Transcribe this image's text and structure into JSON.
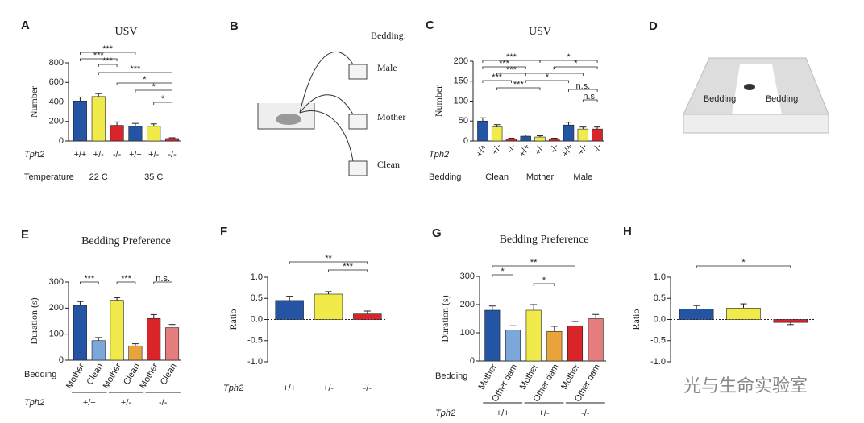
{
  "chart_data": [
    {
      "type": "bar",
      "panel": "A",
      "title": "USV",
      "ylabel": "Number",
      "ylim": [
        0,
        800
      ],
      "yticks": [
        0,
        200,
        400,
        600,
        800
      ],
      "categories": [
        "+/+",
        "+/-",
        "-/-",
        "+/+",
        "+/-",
        "-/-"
      ],
      "colors": [
        "#2455a4",
        "#f0ea4a",
        "#d9252a",
        "#2455a4",
        "#f0ea4a",
        "#d9252a"
      ],
      "values": [
        410,
        455,
        160,
        150,
        150,
        25
      ],
      "errors": [
        40,
        30,
        35,
        30,
        25,
        8
      ],
      "row_labels": [
        "Tph2",
        "Temperature"
      ],
      "groups": [
        "22 C",
        "35 C"
      ],
      "annotations": [
        "***",
        "***",
        "***",
        "***",
        "*",
        "*",
        "*"
      ]
    },
    {
      "type": "bar",
      "panel": "C",
      "title": "USV",
      "ylabel": "Number",
      "ylim": [
        0,
        200
      ],
      "yticks": [
        0,
        50,
        100,
        150,
        200
      ],
      "categories": [
        "+/+",
        "+/-",
        "-/-",
        "+/+",
        "+/-",
        "-/-",
        "+/+",
        "+/-",
        "-/-"
      ],
      "colors": [
        "#2455a4",
        "#f0ea4a",
        "#d9252a",
        "#2455a4",
        "#f0ea4a",
        "#d9252a",
        "#2455a4",
        "#f0ea4a",
        "#d9252a"
      ],
      "values": [
        50,
        35,
        5,
        12,
        10,
        5,
        40,
        30,
        30
      ],
      "errors": [
        8,
        6,
        2,
        3,
        3,
        2,
        7,
        5,
        5
      ],
      "row_labels": [
        "Tph2",
        "Bedding"
      ],
      "groups": [
        "Clean",
        "Mother",
        "Male"
      ],
      "annotations": [
        "***",
        "***",
        "***",
        "***",
        "***",
        "*",
        "*",
        "*",
        "*",
        "n.s.",
        "n.s."
      ]
    },
    {
      "type": "bar",
      "panel": "E",
      "title": "Bedding Preference",
      "ylabel": "Duration (s)",
      "ylim": [
        0,
        300
      ],
      "yticks": [
        0,
        100,
        200,
        300
      ],
      "categories": [
        "Mother",
        "Clean",
        "Mother",
        "Clean",
        "Mother",
        "Clean"
      ],
      "colors": [
        "#2455a4",
        "#7ba7d9",
        "#f0ea4a",
        "#e8a33a",
        "#d9252a",
        "#e57c7e"
      ],
      "values": [
        210,
        75,
        230,
        55,
        160,
        125
      ],
      "errors": [
        15,
        12,
        10,
        8,
        15,
        12
      ],
      "row_labels": [
        "Bedding",
        "Tph2"
      ],
      "groups": [
        "+/+",
        "+/-",
        "-/-"
      ],
      "annotations": [
        "***",
        "***",
        "n.s."
      ]
    },
    {
      "type": "bar",
      "panel": "F",
      "ylabel": "Ratio",
      "ylim": [
        -1,
        1
      ],
      "yticks": [
        {
          "value": -1,
          "label": "-1.0"
        },
        {
          "value": -0.5,
          "label": "-0.5"
        },
        {
          "value": 0,
          "label": "0.0"
        },
        {
          "value": 0.5,
          "label": "0.5"
        },
        {
          "value": 1,
          "label": "1.0"
        }
      ],
      "categories": [
        "+/+",
        "+/-",
        "-/-"
      ],
      "colors": [
        "#2455a4",
        "#f0ea4a",
        "#d9252a"
      ],
      "values": [
        0.45,
        0.6,
        0.13
      ],
      "errors": [
        0.1,
        0.06,
        0.07
      ],
      "row_labels": [
        "Tph2"
      ],
      "annotations": [
        "**",
        "***"
      ]
    },
    {
      "type": "bar",
      "panel": "G",
      "title": "Bedding Preference",
      "ylabel": "Duration (s)",
      "ylim": [
        0,
        300
      ],
      "yticks": [
        0,
        100,
        200,
        300
      ],
      "categories": [
        "Mother",
        "Other dam",
        "Mother",
        "Other dam",
        "Mother",
        "Other dam"
      ],
      "colors": [
        "#2455a4",
        "#7ba7d9",
        "#f0ea4a",
        "#e8a33a",
        "#d9252a",
        "#e57c7e"
      ],
      "values": [
        180,
        110,
        180,
        105,
        125,
        150
      ],
      "errors": [
        15,
        15,
        20,
        18,
        15,
        15
      ],
      "row_labels": [
        "Bedding",
        "Tph2"
      ],
      "groups": [
        "+/+",
        "+/-",
        "-/-"
      ],
      "annotations": [
        "*",
        "*",
        "**"
      ]
    },
    {
      "type": "bar",
      "panel": "H",
      "ylabel": "Ratio",
      "ylim": [
        -1,
        1
      ],
      "yticks": [
        {
          "value": -1,
          "label": "-1.0"
        },
        {
          "value": -0.5,
          "label": "-0.5"
        },
        {
          "value": 0,
          "label": "0.0"
        },
        {
          "value": 0.5,
          "label": "0.5"
        },
        {
          "value": 1,
          "label": "1.0"
        }
      ],
      "categories": [
        null,
        null,
        null
      ],
      "colors": [
        "#2455a4",
        "#f0ea4a",
        "#d9252a"
      ],
      "values": [
        0.25,
        0.27,
        -0.07
      ],
      "errors": [
        0.08,
        0.1,
        0.05
      ],
      "annotations": [
        "*"
      ]
    }
  ],
  "diagrams": [
    {
      "panel": "B",
      "heading": "Bedding:",
      "labels": [
        "Male",
        "Mother",
        "Clean"
      ]
    },
    {
      "panel": "D",
      "labels": [
        "Bedding",
        "Bedding"
      ]
    }
  ],
  "watermark": "光与生命实验室"
}
